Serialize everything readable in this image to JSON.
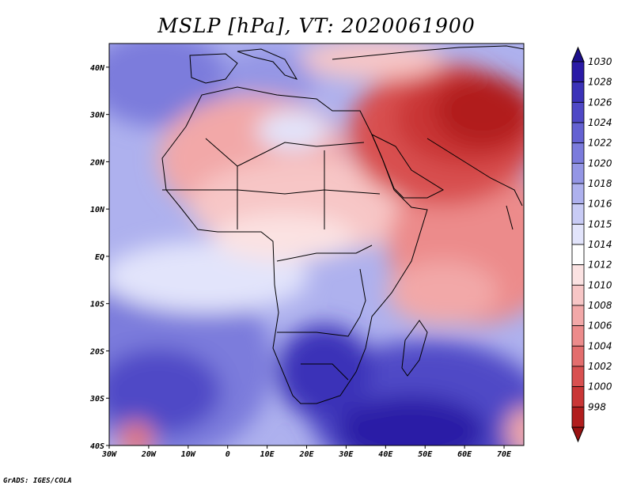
{
  "title": "MSLP [hPa], VT: 2020061900",
  "credit": "GrADS: IGES/COLA",
  "map": {
    "lon_range": [
      -30,
      75
    ],
    "lat_range": [
      -40,
      45
    ],
    "lon_ticks": [
      {
        "value": -30,
        "label": "30W"
      },
      {
        "value": -20,
        "label": "20W"
      },
      {
        "value": -10,
        "label": "10W"
      },
      {
        "value": 0,
        "label": "0"
      },
      {
        "value": 10,
        "label": "10E"
      },
      {
        "value": 20,
        "label": "20E"
      },
      {
        "value": 30,
        "label": "30E"
      },
      {
        "value": 40,
        "label": "40E"
      },
      {
        "value": 50,
        "label": "50E"
      },
      {
        "value": 60,
        "label": "60E"
      },
      {
        "value": 70,
        "label": "70E"
      }
    ],
    "lat_ticks": [
      {
        "value": 40,
        "label": "40N"
      },
      {
        "value": 30,
        "label": "30N"
      },
      {
        "value": 20,
        "label": "20N"
      },
      {
        "value": 10,
        "label": "10N"
      },
      {
        "value": 0,
        "label": "EQ"
      },
      {
        "value": -10,
        "label": "10S"
      },
      {
        "value": -20,
        "label": "20S"
      },
      {
        "value": -30,
        "label": "30S"
      },
      {
        "value": -40,
        "label": "40S"
      }
    ]
  },
  "colorbar": {
    "levels": [
      "1030",
      "1028",
      "1026",
      "1024",
      "1022",
      "1020",
      "1018",
      "1016",
      "1015",
      "1014",
      "1012",
      "1010",
      "1008",
      "1006",
      "1004",
      "1002",
      "1000",
      "998"
    ],
    "colors": [
      "#2a1aa6",
      "#3b32b8",
      "#4f48c6",
      "#6461d2",
      "#7b7bdc",
      "#9496e5",
      "#aeb1ee",
      "#c8cbf5",
      "#e2e4fb",
      "#ffffff",
      "#fbe2e2",
      "#f7c6c6",
      "#f2a8a8",
      "#ec8b8b",
      "#e36d6d",
      "#d85050",
      "#c93636",
      "#b11e1e"
    ],
    "top_arrow_color": "#1c0f8c",
    "bottom_arrow_color": "#9a1212"
  }
}
